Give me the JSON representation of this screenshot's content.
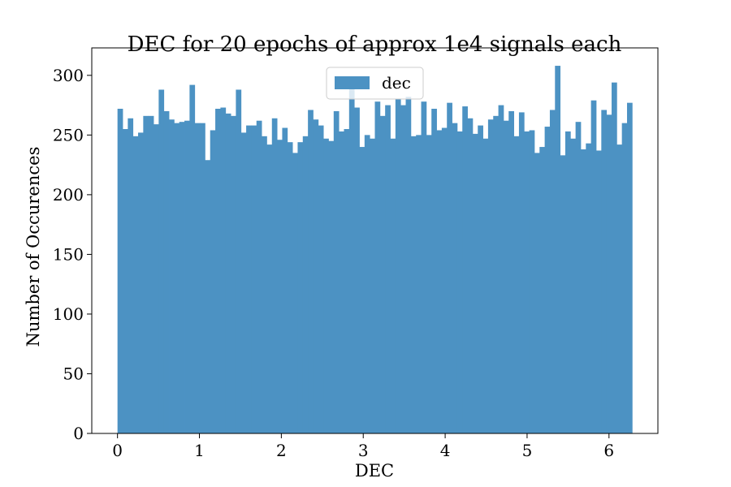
{
  "chart_data": {
    "type": "bar",
    "title": "DEC for 20 epochs of approx 1e4 signals each",
    "xlabel": "DEC",
    "ylabel": "Number of Occurences",
    "xlim": [
      -0.314,
      6.597
    ],
    "ylim": [
      0,
      323
    ],
    "xticks": [
      0,
      1,
      2,
      3,
      4,
      5,
      6
    ],
    "yticks": [
      0,
      50,
      100,
      150,
      200,
      250,
      300
    ],
    "grid": false,
    "legend_position": "top-center",
    "bin_range": [
      0,
      6.283
    ],
    "series": [
      {
        "name": "dec",
        "color": "#4c92c3",
        "values": [
          272,
          255,
          264,
          249,
          252,
          266,
          266,
          259,
          288,
          270,
          263,
          260,
          261,
          262,
          292,
          260,
          260,
          229,
          254,
          272,
          273,
          268,
          266,
          288,
          252,
          258,
          258,
          262,
          249,
          242,
          264,
          246,
          256,
          244,
          235,
          244,
          249,
          271,
          263,
          258,
          247,
          245,
          270,
          253,
          255,
          289,
          273,
          240,
          250,
          247,
          278,
          266,
          275,
          247,
          280,
          275,
          282,
          249,
          250,
          278,
          250,
          272,
          254,
          256,
          277,
          260,
          253,
          274,
          264,
          251,
          258,
          247,
          263,
          266,
          275,
          262,
          270,
          249,
          269,
          253,
          254,
          235,
          240,
          257,
          271,
          308,
          233,
          253,
          247,
          261,
          238,
          243,
          279,
          237,
          271,
          267,
          294,
          242,
          260,
          277
        ]
      }
    ]
  }
}
